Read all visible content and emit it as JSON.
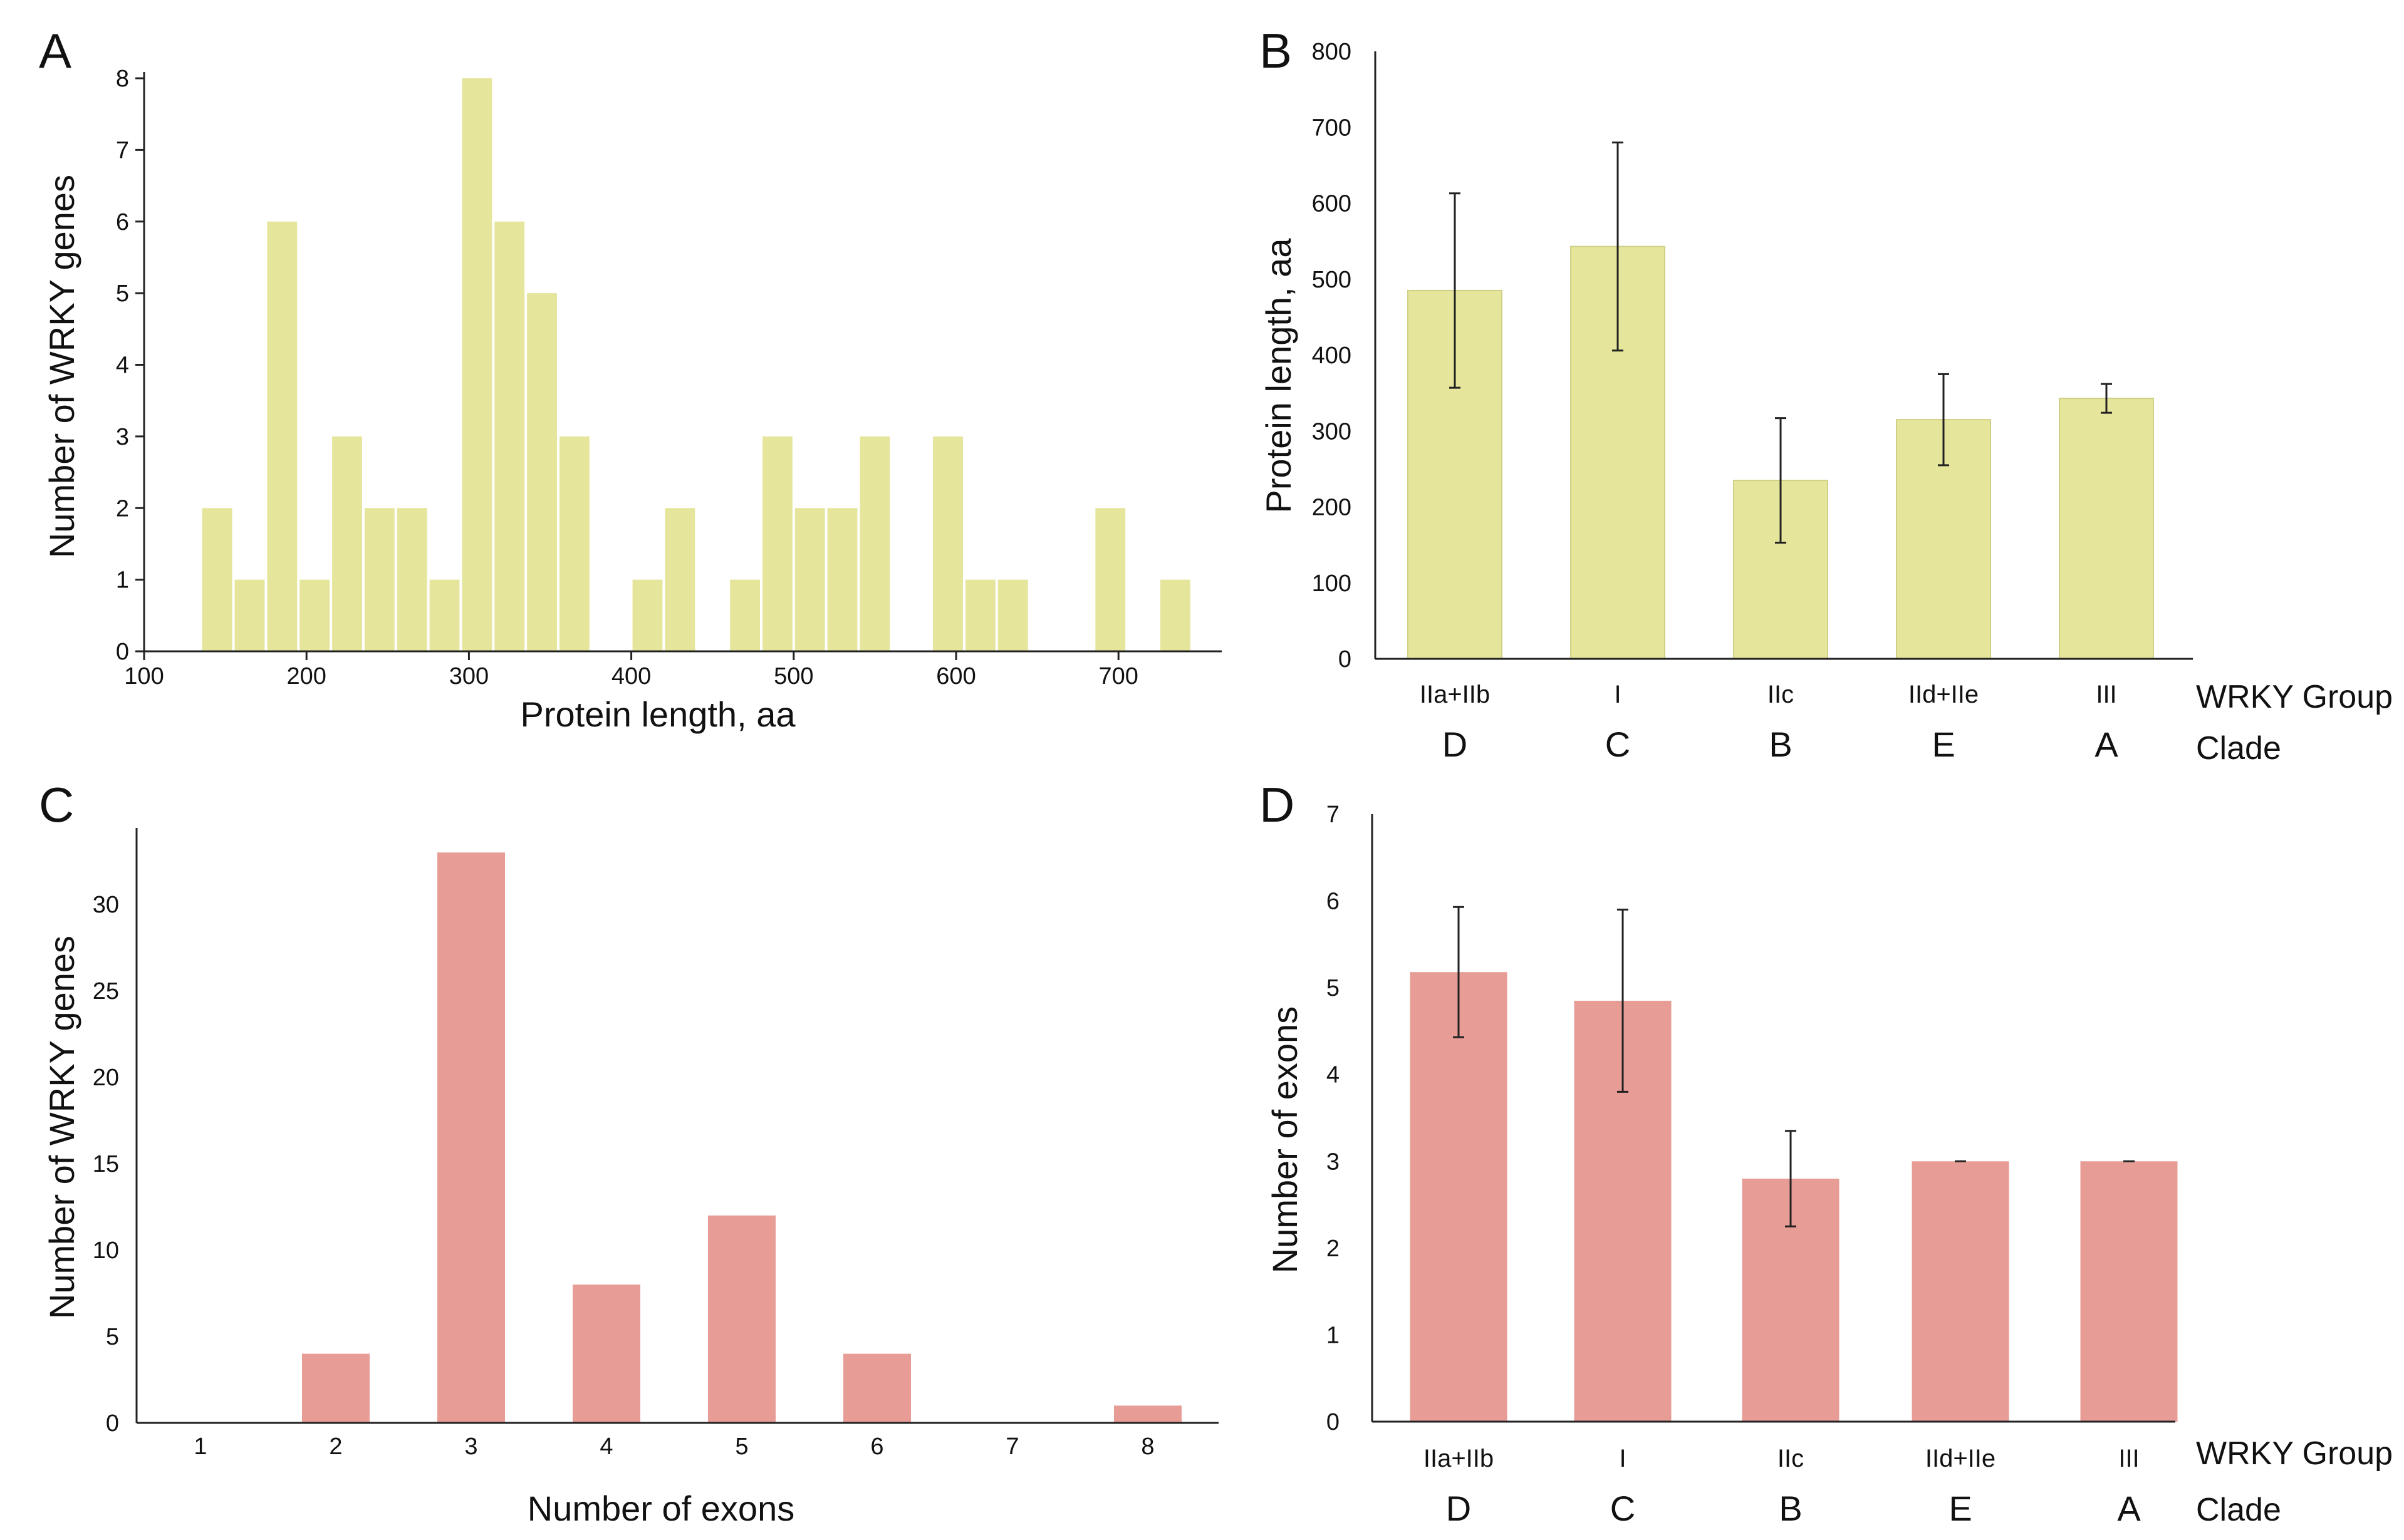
{
  "chart_data": [
    {
      "panel": "A",
      "type": "bar",
      "subtype": "histogram",
      "xlabel": "Protein length, aa",
      "ylabel": "Number of WRKY genes",
      "xlim": [
        100,
        770
      ],
      "ylim": [
        0,
        8
      ],
      "xticks": [
        100,
        200,
        300,
        400,
        500,
        600,
        700
      ],
      "yticks": [
        0,
        1,
        2,
        3,
        4,
        5,
        6,
        7,
        8
      ],
      "bin_width": 20,
      "bin_starts": [
        135,
        155,
        175,
        195,
        215,
        235,
        255,
        275,
        295,
        315,
        335,
        355,
        400,
        420,
        460,
        480,
        500,
        520,
        540,
        585,
        605,
        625,
        685,
        725
      ],
      "values": [
        2,
        1,
        6,
        1,
        3,
        2,
        2,
        1,
        8,
        6,
        5,
        3,
        1,
        2,
        1,
        3,
        2,
        2,
        3,
        3,
        1,
        1,
        2,
        1
      ],
      "color": "#e5e59c"
    },
    {
      "panel": "B",
      "type": "bar",
      "xlabel": "",
      "ylabel": "Protein length, aa",
      "ylim": [
        0,
        800
      ],
      "yticks": [
        0,
        100,
        200,
        300,
        400,
        500,
        600,
        700,
        800
      ],
      "categories": [
        "IIa+IIb",
        "I",
        "IIc",
        "IId+IIe",
        "III"
      ],
      "clades": [
        "D",
        "C",
        "B",
        "E",
        "A"
      ],
      "values": [
        485,
        543,
        235,
        315,
        343
      ],
      "errors": [
        128,
        137,
        82,
        60,
        19
      ],
      "row_labels": {
        "group": "WRKY Group",
        "clade": "Clade"
      },
      "color": "#e5e59c"
    },
    {
      "panel": "C",
      "type": "bar",
      "xlabel": "Number of exons",
      "ylabel": "Number of WRKY genes",
      "ylim": [
        0,
        35
      ],
      "yticks": [
        0,
        5,
        10,
        15,
        20,
        25,
        30
      ],
      "categories": [
        "1",
        "2",
        "3",
        "4",
        "5",
        "6",
        "7",
        "8"
      ],
      "values": [
        0,
        4,
        33,
        8,
        12,
        4,
        0,
        1
      ],
      "color": "#e89c96"
    },
    {
      "panel": "D",
      "type": "bar",
      "xlabel": "",
      "ylabel": "Number of exons",
      "ylim": [
        0,
        7
      ],
      "yticks": [
        0,
        1,
        2,
        3,
        4,
        5,
        6,
        7
      ],
      "categories": [
        "IIa+IIb",
        "I",
        "IIc",
        "IId+IIe",
        "III"
      ],
      "clades": [
        "D",
        "C",
        "B",
        "E",
        "A"
      ],
      "values": [
        5.18,
        4.85,
        2.8,
        3.0,
        3.0
      ],
      "errors": [
        0.75,
        1.05,
        0.55,
        0,
        0
      ],
      "row_labels": {
        "group": "WRKY Group",
        "clade": "Clade"
      },
      "color": "#e89c96"
    }
  ]
}
